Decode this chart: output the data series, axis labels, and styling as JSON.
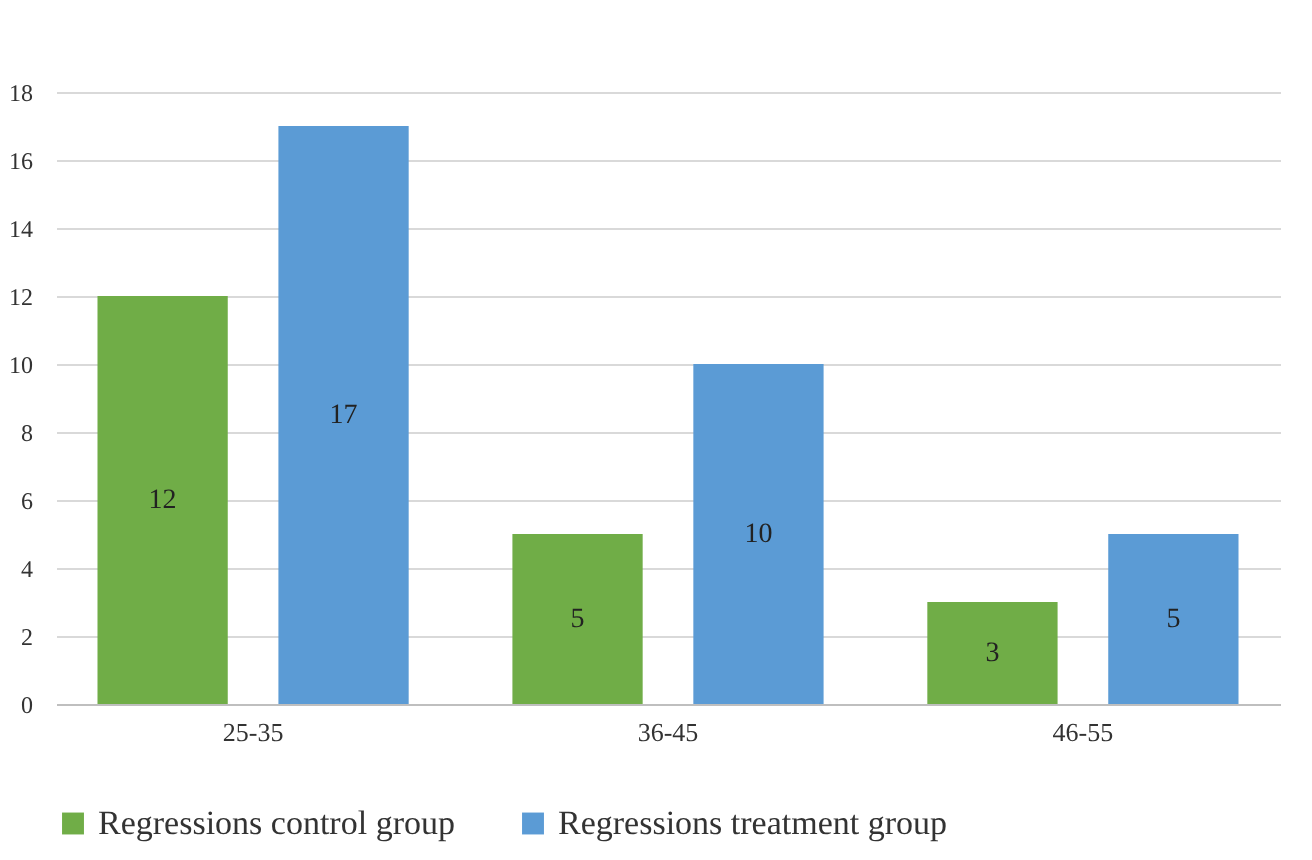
{
  "chart_data": {
    "type": "bar",
    "categories": [
      "25-35",
      "36-45",
      "46-55"
    ],
    "series": [
      {
        "name": "Regressions control group",
        "color": "#70ad47",
        "values": [
          12,
          5,
          3
        ]
      },
      {
        "name": "Regressions treatment group",
        "color": "#5b9bd5",
        "values": [
          17,
          10,
          5
        ]
      }
    ],
    "ylim": [
      0,
      18
    ],
    "yticks": [
      0,
      2,
      4,
      6,
      8,
      10,
      12,
      14,
      16,
      18
    ],
    "grid": "y",
    "legend": "bottom",
    "data_labels": true
  }
}
